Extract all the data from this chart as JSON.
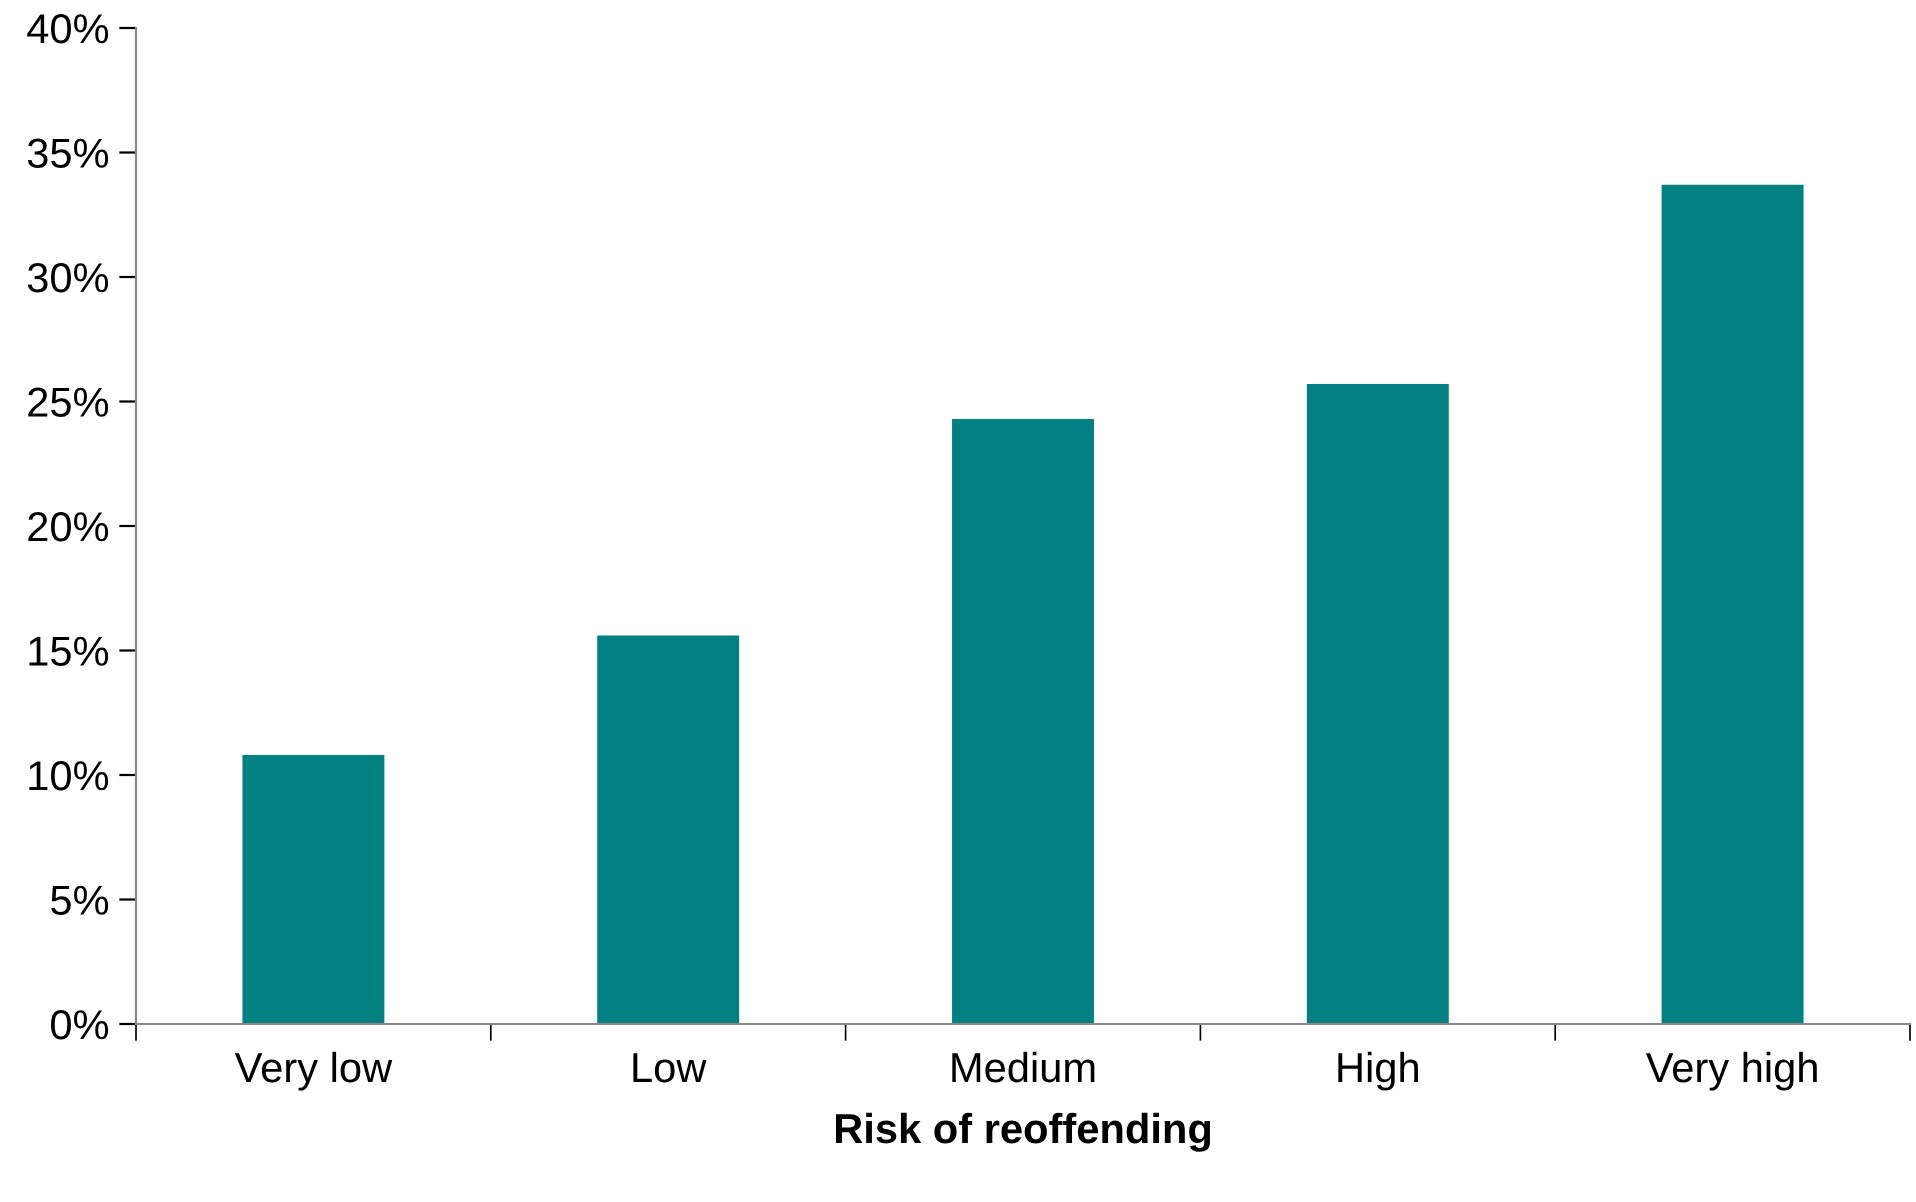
{
  "chart_data": {
    "type": "bar",
    "xlabel": "Risk of reoffending",
    "categories": [
      "Very low",
      "Low",
      "Medium",
      "High",
      "Very high"
    ],
    "values": [
      10.8,
      15.6,
      24.3,
      25.7,
      33.7
    ],
    "color": "#008080",
    "ylim": [
      0,
      40
    ],
    "yticks": [
      {
        "value": 0,
        "label": "0%"
      },
      {
        "value": 5,
        "label": "5%"
      },
      {
        "value": 10,
        "label": "10%"
      },
      {
        "value": 15,
        "label": "15%"
      },
      {
        "value": 20,
        "label": "20%"
      },
      {
        "value": 25,
        "label": "25%"
      },
      {
        "value": 30,
        "label": "30%"
      },
      {
        "value": 35,
        "label": "35%"
      },
      {
        "value": 40,
        "label": "40%"
      }
    ],
    "grid": false,
    "legend": false
  }
}
